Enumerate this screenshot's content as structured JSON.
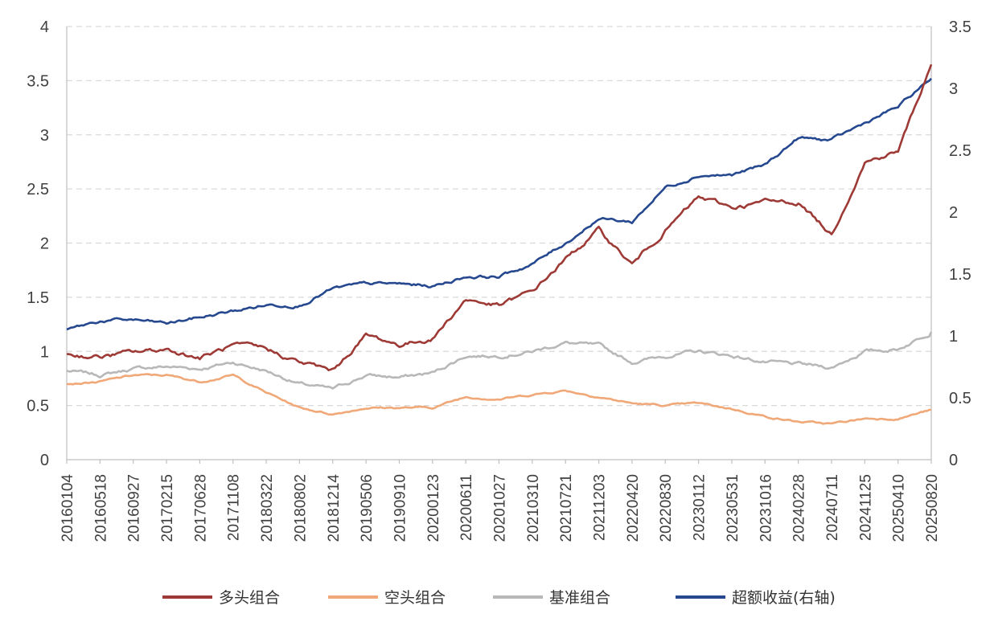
{
  "chart_data": {
    "type": "line",
    "title": "",
    "xlabel": "",
    "ylabel": "",
    "ylim": [
      0,
      4
    ],
    "y2lim": [
      0,
      3.5
    ],
    "grid": true,
    "legend_position": "bottom",
    "yticks": [
      "0",
      "0.5",
      "1",
      "1.5",
      "2",
      "2.5",
      "3",
      "3.5",
      "4"
    ],
    "y2ticks": [
      "0",
      "0.5",
      "1",
      "1.5",
      "2",
      "2.5",
      "3",
      "3.5"
    ],
    "categories": [
      "20160104",
      "20160518",
      "20160927",
      "20170215",
      "20170628",
      "20171108",
      "20180322",
      "20180802",
      "20181214",
      "20190506",
      "20190910",
      "20200123",
      "20200611",
      "20201027",
      "20210310",
      "20210721",
      "20211203",
      "20220420",
      "20220830",
      "20230112",
      "20230531",
      "20231016",
      "20240228",
      "20240711",
      "20241125",
      "20250410",
      "20250820"
    ],
    "series": [
      {
        "name": "多头组合",
        "color": "#9e3a36",
        "axis": "left",
        "values": [
          0.97,
          0.95,
          0.99,
          1.02,
          0.94,
          1.05,
          1.02,
          0.9,
          0.82,
          1.15,
          1.06,
          1.12,
          1.48,
          1.42,
          1.55,
          1.85,
          2.12,
          1.8,
          2.12,
          2.42,
          2.33,
          2.38,
          2.38,
          2.08,
          2.75,
          2.85,
          3.65
        ]
      },
      {
        "name": "空头组合",
        "color": "#f0a878",
        "axis": "left",
        "values": [
          0.7,
          0.72,
          0.78,
          0.78,
          0.72,
          0.78,
          0.62,
          0.48,
          0.42,
          0.48,
          0.48,
          0.48,
          0.58,
          0.56,
          0.6,
          0.64,
          0.58,
          0.52,
          0.5,
          0.52,
          0.47,
          0.4,
          0.35,
          0.33,
          0.38,
          0.38,
          0.46
        ]
      },
      {
        "name": "基准组合",
        "color": "#b8b8b8",
        "axis": "left",
        "values": [
          0.82,
          0.78,
          0.84,
          0.86,
          0.84,
          0.9,
          0.82,
          0.7,
          0.65,
          0.78,
          0.76,
          0.8,
          0.96,
          0.96,
          1.0,
          1.08,
          1.05,
          0.9,
          0.96,
          1.0,
          0.96,
          0.9,
          0.88,
          0.85,
          1.0,
          1.02,
          1.18
        ]
      },
      {
        "name": "超额收益(右轴)",
        "color": "#25488f",
        "axis": "right",
        "values": [
          1.05,
          1.12,
          1.13,
          1.1,
          1.15,
          1.2,
          1.25,
          1.25,
          1.38,
          1.42,
          1.42,
          1.4,
          1.48,
          1.48,
          1.58,
          1.75,
          1.95,
          1.92,
          2.2,
          2.3,
          2.3,
          2.38,
          2.6,
          2.58,
          2.72,
          2.85,
          3.08
        ]
      }
    ]
  }
}
